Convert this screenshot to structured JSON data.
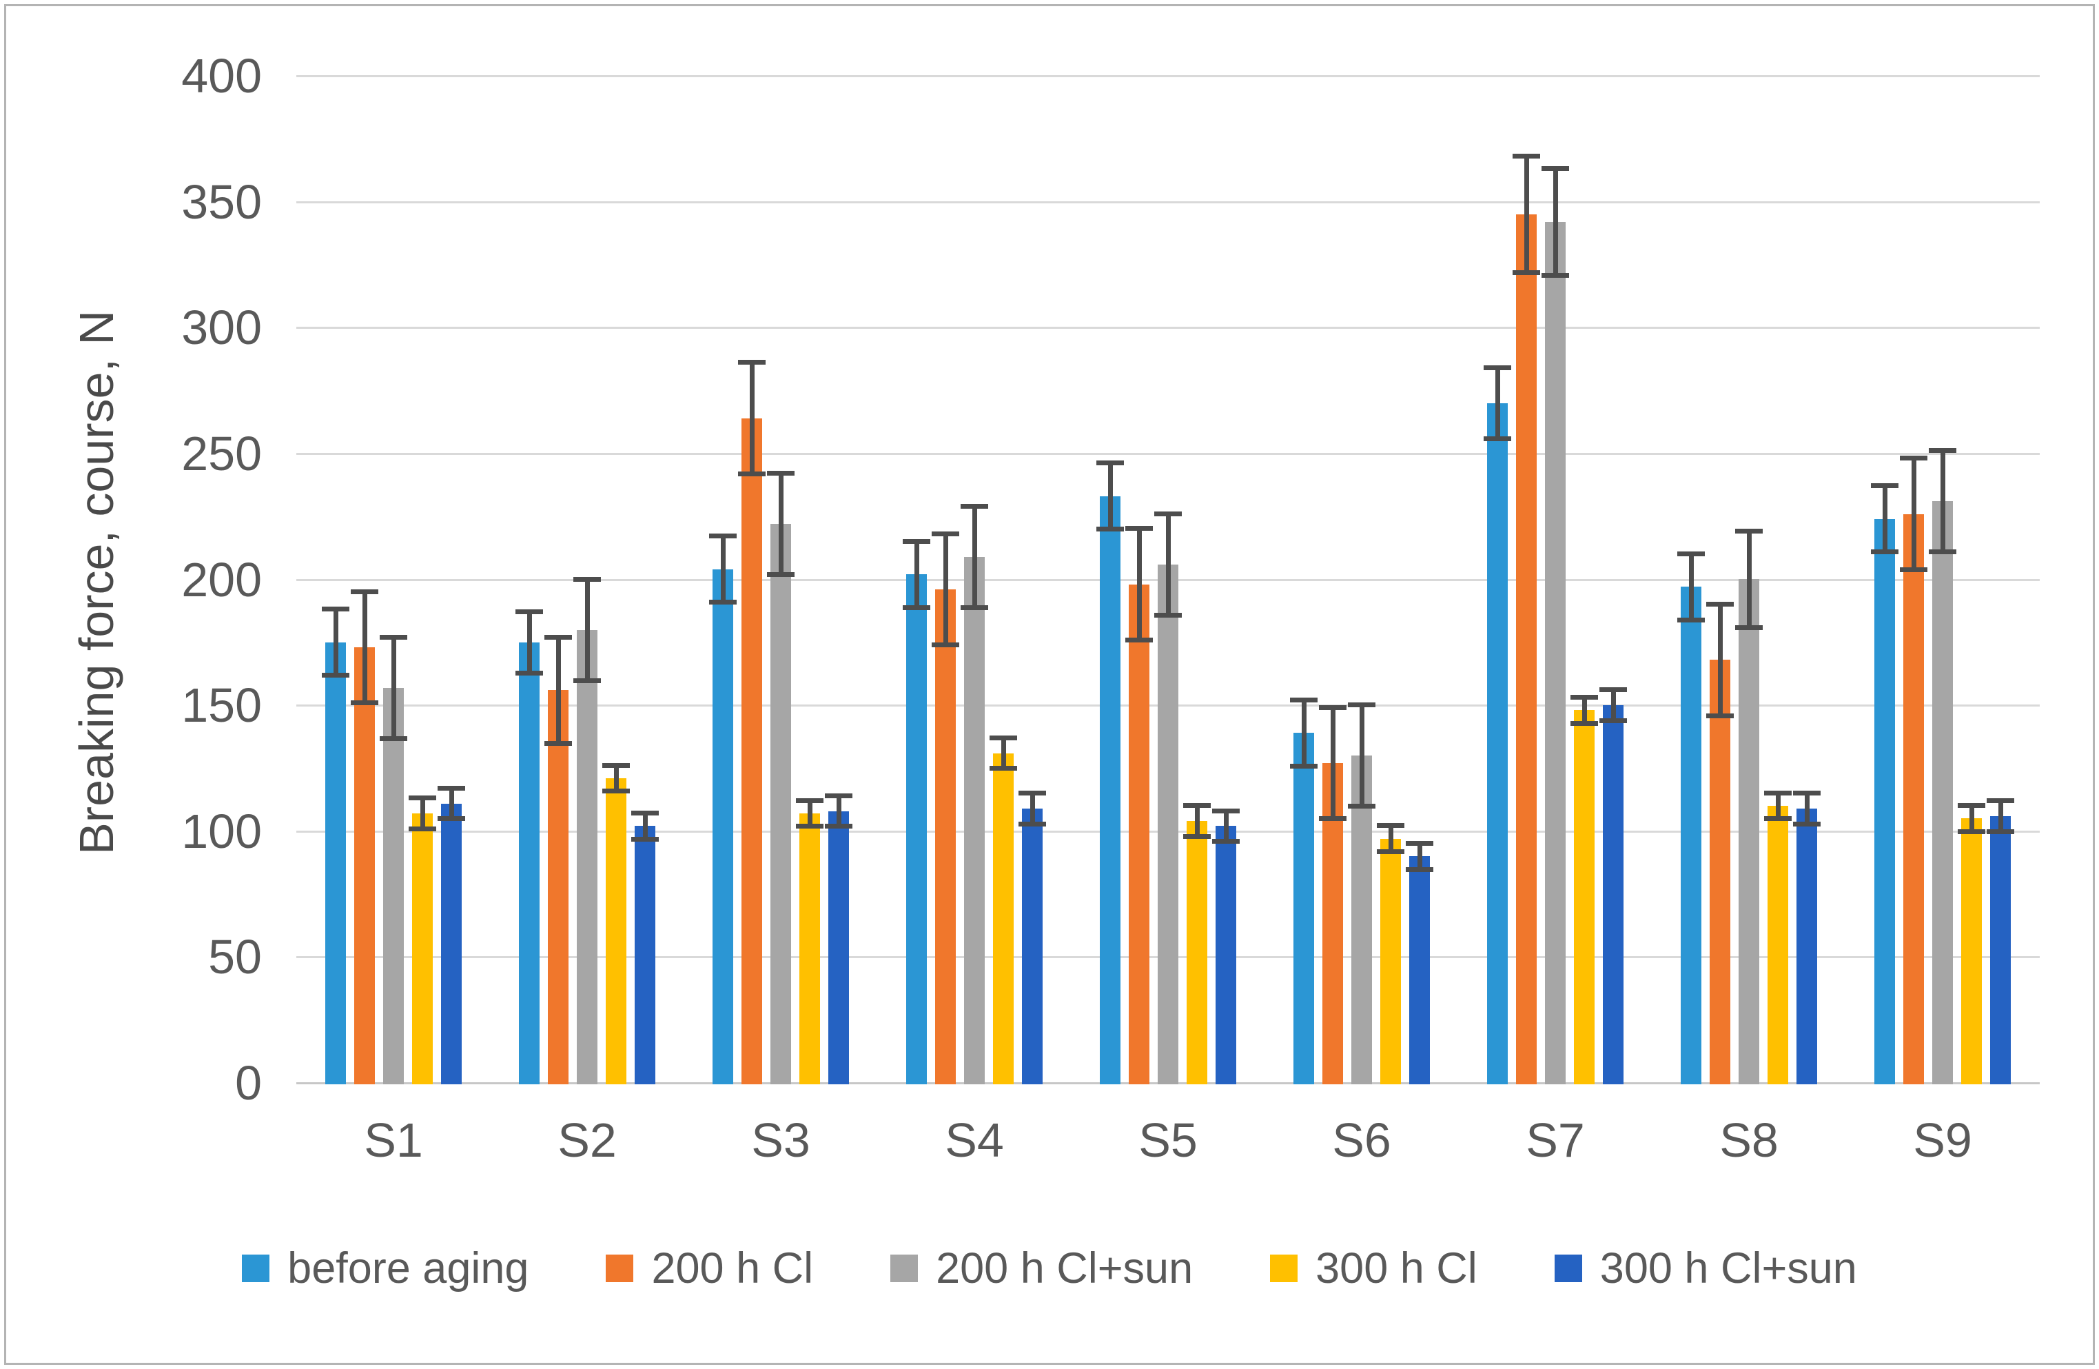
{
  "chart_data": {
    "type": "bar",
    "title": "",
    "xlabel": "",
    "ylabel": "Breaking force, course, N",
    "ylim": [
      0,
      400
    ],
    "ytick_step": 50,
    "y_ticks": [
      0,
      50,
      100,
      150,
      200,
      250,
      300,
      350,
      400
    ],
    "grid": "horizontal",
    "legend_position": "bottom",
    "error_bar_color": "#4d4d4d",
    "categories": [
      "S1",
      "S2",
      "S3",
      "S4",
      "S5",
      "S6",
      "S7",
      "S8",
      "S9"
    ],
    "series": [
      {
        "name": "before aging",
        "color": "#2b96d4",
        "values": [
          175,
          175,
          204,
          202,
          233,
          139,
          270,
          197,
          224
        ],
        "errors": [
          13,
          12,
          13,
          13,
          13,
          13,
          14,
          13,
          13
        ]
      },
      {
        "name": "200 h Cl",
        "color": "#f0772c",
        "values": [
          173,
          156,
          264,
          196,
          198,
          127,
          345,
          168,
          226
        ],
        "errors": [
          22,
          21,
          22,
          22,
          22,
          22,
          23,
          22,
          22
        ]
      },
      {
        "name": "200 h Cl+sun",
        "color": "#a6a6a6",
        "values": [
          157,
          180,
          222,
          209,
          206,
          130,
          342,
          200,
          231
        ],
        "errors": [
          20,
          20,
          20,
          20,
          20,
          20,
          21,
          19,
          20
        ]
      },
      {
        "name": "300 h Cl",
        "color": "#ffc000",
        "values": [
          107,
          121,
          107,
          131,
          104,
          97,
          148,
          110,
          105
        ],
        "errors": [
          6,
          5,
          5,
          6,
          6,
          5,
          5,
          5,
          5
        ]
      },
      {
        "name": "300 h Cl+sun",
        "color": "#2562c2",
        "values": [
          111,
          102,
          108,
          109,
          102,
          90,
          150,
          109,
          106
        ],
        "errors": [
          6,
          5,
          6,
          6,
          6,
          5,
          6,
          6,
          6
        ]
      }
    ]
  }
}
